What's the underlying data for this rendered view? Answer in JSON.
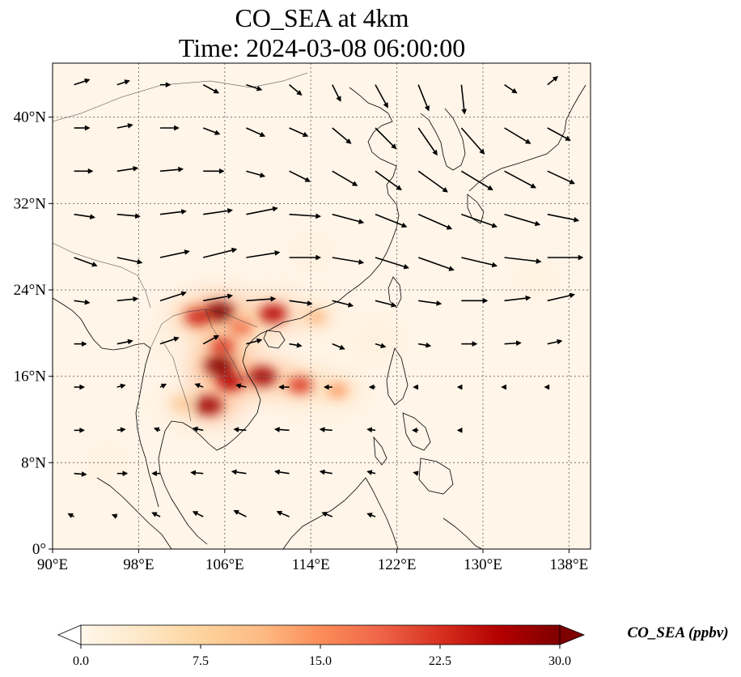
{
  "figure": {
    "title_line1": "CO_SEA at 4km",
    "title_line2": "Time: 2024-03-08 06:00:00"
  },
  "map": {
    "lon_range": [
      90,
      140
    ],
    "lat_range": [
      0,
      45
    ],
    "gridlines": true,
    "lon_ticks": [
      {
        "value": 90,
        "label": "90°E"
      },
      {
        "value": 98,
        "label": "98°E"
      },
      {
        "value": 106,
        "label": "106°E"
      },
      {
        "value": 114,
        "label": "114°E"
      },
      {
        "value": 122,
        "label": "122°E"
      },
      {
        "value": 130,
        "label": "130°E"
      },
      {
        "value": 138,
        "label": "138°E"
      }
    ],
    "lat_ticks": [
      {
        "value": 0,
        "label": "0°"
      },
      {
        "value": 8,
        "label": "8°N"
      },
      {
        "value": 16,
        "label": "16°N"
      },
      {
        "value": 24,
        "label": "24°N"
      },
      {
        "value": 32,
        "label": "32°N"
      },
      {
        "value": 40,
        "label": "40°N"
      }
    ]
  },
  "colorbar": {
    "label": "CO_SEA (ppbv)",
    "colormap": "OrRd",
    "colors": [
      "#fff7ec",
      "#fee8c8",
      "#fdd49e",
      "#fdbb84",
      "#fc8d59",
      "#ef6548",
      "#d7301f",
      "#b30000",
      "#7f0000"
    ],
    "range": [
      0,
      30
    ],
    "ticks": [
      {
        "value": 0,
        "label": "0.0"
      },
      {
        "value": 7.5,
        "label": "7.5"
      },
      {
        "value": 15,
        "label": "15.0"
      },
      {
        "value": 22.5,
        "label": "22.5"
      },
      {
        "value": 30,
        "label": "30.0"
      }
    ]
  },
  "concentration_hotspots": [
    {
      "lon": 105.5,
      "lat": 22.0,
      "value": 30
    },
    {
      "lon": 103.5,
      "lat": 21.5,
      "value": 24
    },
    {
      "lon": 110.5,
      "lat": 21.8,
      "value": 26
    },
    {
      "lon": 107.5,
      "lat": 20.5,
      "value": 18
    },
    {
      "lon": 105.8,
      "lat": 18.8,
      "value": 22
    },
    {
      "lon": 105.5,
      "lat": 17.0,
      "value": 30
    },
    {
      "lon": 106.5,
      "lat": 15.5,
      "value": 26
    },
    {
      "lon": 109.5,
      "lat": 16.0,
      "value": 28
    },
    {
      "lon": 113.0,
      "lat": 15.2,
      "value": 22
    },
    {
      "lon": 116.5,
      "lat": 14.7,
      "value": 14
    },
    {
      "lon": 104.5,
      "lat": 13.3,
      "value": 28
    },
    {
      "lon": 102.0,
      "lat": 13.5,
      "value": 10
    },
    {
      "lon": 114.5,
      "lat": 21.5,
      "value": 12
    },
    {
      "lon": 120.0,
      "lat": 19.5,
      "value": 8
    },
    {
      "lon": 114.0,
      "lat": 27.5,
      "value": 6
    },
    {
      "lon": 135.0,
      "lat": 25.0,
      "value": 5
    },
    {
      "lon": 95.0,
      "lat": 8.0,
      "value": 5
    },
    {
      "lon": 100.5,
      "lat": 19.0,
      "value": 5
    }
  ],
  "wind_vectors": [
    {
      "lon": 92,
      "lat": 43,
      "u": 1.5,
      "v": 0.5
    },
    {
      "lon": 96,
      "lat": 43,
      "u": 1.2,
      "v": 0.4
    },
    {
      "lon": 100,
      "lat": 43,
      "u": 1.0,
      "v": 0.0
    },
    {
      "lon": 104,
      "lat": 43,
      "u": 1.5,
      "v": -0.8
    },
    {
      "lon": 108,
      "lat": 43,
      "u": 1.5,
      "v": -0.5
    },
    {
      "lon": 112,
      "lat": 43,
      "u": 1.2,
      "v": -1.0
    },
    {
      "lon": 116,
      "lat": 43,
      "u": 0.8,
      "v": -1.6
    },
    {
      "lon": 120,
      "lat": 43,
      "u": 1.2,
      "v": -2.2
    },
    {
      "lon": 124,
      "lat": 43,
      "u": 1.0,
      "v": -2.5
    },
    {
      "lon": 128,
      "lat": 43,
      "u": 0.3,
      "v": -2.8
    },
    {
      "lon": 132,
      "lat": 43,
      "u": 1.2,
      "v": -0.8
    },
    {
      "lon": 136,
      "lat": 43,
      "u": 1.0,
      "v": 0.8
    },
    {
      "lon": 92,
      "lat": 39,
      "u": 1.5,
      "v": 0.0
    },
    {
      "lon": 96,
      "lat": 39,
      "u": 1.5,
      "v": 0.3
    },
    {
      "lon": 100,
      "lat": 39,
      "u": 1.8,
      "v": 0.0
    },
    {
      "lon": 104,
      "lat": 39,
      "u": 1.6,
      "v": -0.6
    },
    {
      "lon": 108,
      "lat": 39,
      "u": 1.8,
      "v": -0.8
    },
    {
      "lon": 112,
      "lat": 39,
      "u": 1.8,
      "v": -0.8
    },
    {
      "lon": 116,
      "lat": 39,
      "u": 1.8,
      "v": -1.5
    },
    {
      "lon": 120,
      "lat": 39,
      "u": 2.0,
      "v": -2.0
    },
    {
      "lon": 124,
      "lat": 39,
      "u": 1.8,
      "v": -2.6
    },
    {
      "lon": 128,
      "lat": 39,
      "u": 2.2,
      "v": -2.5
    },
    {
      "lon": 132,
      "lat": 39,
      "u": 2.5,
      "v": -1.5
    },
    {
      "lon": 136,
      "lat": 39,
      "u": 2.2,
      "v": -1.2
    },
    {
      "lon": 92,
      "lat": 35,
      "u": 1.8,
      "v": 0.0
    },
    {
      "lon": 96,
      "lat": 35,
      "u": 2.0,
      "v": 0.3
    },
    {
      "lon": 100,
      "lat": 35,
      "u": 2.2,
      "v": 0.2
    },
    {
      "lon": 104,
      "lat": 35,
      "u": 2.0,
      "v": 0.0
    },
    {
      "lon": 108,
      "lat": 35,
      "u": 1.8,
      "v": -0.5
    },
    {
      "lon": 112,
      "lat": 35,
      "u": 2.0,
      "v": -1.0
    },
    {
      "lon": 116,
      "lat": 35,
      "u": 2.4,
      "v": -1.4
    },
    {
      "lon": 120,
      "lat": 35,
      "u": 2.5,
      "v": -1.8
    },
    {
      "lon": 124,
      "lat": 35,
      "u": 2.8,
      "v": -2.0
    },
    {
      "lon": 128,
      "lat": 35,
      "u": 3.0,
      "v": -1.8
    },
    {
      "lon": 132,
      "lat": 35,
      "u": 3.0,
      "v": -1.6
    },
    {
      "lon": 136,
      "lat": 35,
      "u": 2.6,
      "v": -1.2
    },
    {
      "lon": 92,
      "lat": 31,
      "u": 2.0,
      "v": -0.3
    },
    {
      "lon": 96,
      "lat": 31,
      "u": 2.2,
      "v": -0.2
    },
    {
      "lon": 100,
      "lat": 31,
      "u": 2.5,
      "v": 0.3
    },
    {
      "lon": 104,
      "lat": 31,
      "u": 2.8,
      "v": 0.4
    },
    {
      "lon": 108,
      "lat": 31,
      "u": 3.0,
      "v": 0.6
    },
    {
      "lon": 112,
      "lat": 31,
      "u": 3.0,
      "v": -0.2
    },
    {
      "lon": 116,
      "lat": 31,
      "u": 3.0,
      "v": -0.8
    },
    {
      "lon": 120,
      "lat": 31,
      "u": 3.0,
      "v": -1.2
    },
    {
      "lon": 124,
      "lat": 31,
      "u": 3.2,
      "v": -1.4
    },
    {
      "lon": 128,
      "lat": 31,
      "u": 3.4,
      "v": -1.2
    },
    {
      "lon": 132,
      "lat": 31,
      "u": 3.4,
      "v": -1.0
    },
    {
      "lon": 136,
      "lat": 31,
      "u": 3.0,
      "v": -0.6
    },
    {
      "lon": 92,
      "lat": 27,
      "u": 2.2,
      "v": -0.8
    },
    {
      "lon": 96,
      "lat": 27,
      "u": 2.4,
      "v": -0.5
    },
    {
      "lon": 100,
      "lat": 27,
      "u": 2.8,
      "v": 0.6
    },
    {
      "lon": 104,
      "lat": 27,
      "u": 3.2,
      "v": 0.8
    },
    {
      "lon": 108,
      "lat": 27,
      "u": 3.2,
      "v": 0.5
    },
    {
      "lon": 112,
      "lat": 27,
      "u": 3.0,
      "v": 0.0
    },
    {
      "lon": 116,
      "lat": 27,
      "u": 3.0,
      "v": -0.5
    },
    {
      "lon": 120,
      "lat": 27,
      "u": 3.2,
      "v": -1.0
    },
    {
      "lon": 124,
      "lat": 27,
      "u": 3.4,
      "v": -1.2
    },
    {
      "lon": 128,
      "lat": 27,
      "u": 3.4,
      "v": -0.8
    },
    {
      "lon": 132,
      "lat": 27,
      "u": 3.5,
      "v": -0.4
    },
    {
      "lon": 136,
      "lat": 27,
      "u": 3.4,
      "v": 0.0
    },
    {
      "lon": 92,
      "lat": 23,
      "u": 1.5,
      "v": -0.2
    },
    {
      "lon": 96,
      "lat": 23,
      "u": 2.0,
      "v": 0.2
    },
    {
      "lon": 100,
      "lat": 23,
      "u": 2.5,
      "v": 0.8
    },
    {
      "lon": 104,
      "lat": 23,
      "u": 2.8,
      "v": 0.5
    },
    {
      "lon": 108,
      "lat": 23,
      "u": 2.8,
      "v": 0.2
    },
    {
      "lon": 112,
      "lat": 23,
      "u": 2.2,
      "v": -0.3
    },
    {
      "lon": 116,
      "lat": 23,
      "u": 2.0,
      "v": -0.5
    },
    {
      "lon": 120,
      "lat": 23,
      "u": 2.0,
      "v": -0.5
    },
    {
      "lon": 124,
      "lat": 23,
      "u": 2.2,
      "v": -0.3
    },
    {
      "lon": 128,
      "lat": 23,
      "u": 2.5,
      "v": 0.0
    },
    {
      "lon": 132,
      "lat": 23,
      "u": 2.5,
      "v": 0.3
    },
    {
      "lon": 136,
      "lat": 23,
      "u": 2.6,
      "v": 0.6
    },
    {
      "lon": 92,
      "lat": 19,
      "u": 1.2,
      "v": 0.0
    },
    {
      "lon": 96,
      "lat": 19,
      "u": 1.5,
      "v": 0.3
    },
    {
      "lon": 100,
      "lat": 19,
      "u": 1.8,
      "v": 0.6
    },
    {
      "lon": 104,
      "lat": 19,
      "u": 1.5,
      "v": 0.8
    },
    {
      "lon": 108,
      "lat": 19,
      "u": 1.5,
      "v": 0.4
    },
    {
      "lon": 112,
      "lat": 19,
      "u": 1.2,
      "v": -0.2
    },
    {
      "lon": 116,
      "lat": 19,
      "u": 1.2,
      "v": -0.5
    },
    {
      "lon": 120,
      "lat": 19,
      "u": 1.0,
      "v": -0.3
    },
    {
      "lon": 124,
      "lat": 19,
      "u": 1.2,
      "v": -0.2
    },
    {
      "lon": 128,
      "lat": 19,
      "u": 1.5,
      "v": 0.0
    },
    {
      "lon": 132,
      "lat": 19,
      "u": 1.6,
      "v": 0.1
    },
    {
      "lon": 136,
      "lat": 19,
      "u": 1.4,
      "v": 0.3
    },
    {
      "lon": 92,
      "lat": 15,
      "u": 1.0,
      "v": 0.0
    },
    {
      "lon": 96,
      "lat": 15,
      "u": 0.8,
      "v": 0.2
    },
    {
      "lon": 100,
      "lat": 15,
      "u": 0.6,
      "v": 0.3
    },
    {
      "lon": 104,
      "lat": 15,
      "u": -0.8,
      "v": 0.3
    },
    {
      "lon": 108,
      "lat": 15,
      "u": -1.0,
      "v": 0.2
    },
    {
      "lon": 112,
      "lat": 15,
      "u": -1.0,
      "v": 0.0
    },
    {
      "lon": 116,
      "lat": 15,
      "u": -0.8,
      "v": 0.0
    },
    {
      "lon": 120,
      "lat": 15,
      "u": -0.6,
      "v": 0.0
    },
    {
      "lon": 124,
      "lat": 15,
      "u": -0.5,
      "v": 0.0
    },
    {
      "lon": 128,
      "lat": 15,
      "u": -0.4,
      "v": 0.0
    },
    {
      "lon": 132,
      "lat": 15,
      "u": -0.3,
      "v": 0.0
    },
    {
      "lon": 136,
      "lat": 15,
      "u": -0.3,
      "v": 0.0
    },
    {
      "lon": 92,
      "lat": 11,
      "u": 1.0,
      "v": 0.0
    },
    {
      "lon": 96,
      "lat": 11,
      "u": 0.8,
      "v": 0.1
    },
    {
      "lon": 100,
      "lat": 11,
      "u": -0.6,
      "v": 0.2
    },
    {
      "lon": 104,
      "lat": 11,
      "u": -1.0,
      "v": 0.2
    },
    {
      "lon": 108,
      "lat": 11,
      "u": -1.2,
      "v": 0.1
    },
    {
      "lon": 112,
      "lat": 11,
      "u": -1.4,
      "v": 0.1
    },
    {
      "lon": 116,
      "lat": 11,
      "u": -1.2,
      "v": 0.1
    },
    {
      "lon": 120,
      "lat": 11,
      "u": -0.8,
      "v": 0.1
    },
    {
      "lon": 124,
      "lat": 11,
      "u": -0.6,
      "v": 0.0
    },
    {
      "lon": 128,
      "lat": 11,
      "u": -0.4,
      "v": 0.0
    },
    {
      "lon": 92,
      "lat": 7,
      "u": 1.2,
      "v": -0.1
    },
    {
      "lon": 96,
      "lat": 7,
      "u": 1.0,
      "v": 0.0
    },
    {
      "lon": 100,
      "lat": 7,
      "u": -0.8,
      "v": 0.0
    },
    {
      "lon": 104,
      "lat": 7,
      "u": -1.2,
      "v": 0.1
    },
    {
      "lon": 108,
      "lat": 7,
      "u": -1.4,
      "v": 0.2
    },
    {
      "lon": 112,
      "lat": 7,
      "u": -1.4,
      "v": 0.2
    },
    {
      "lon": 116,
      "lat": 7,
      "u": -1.2,
      "v": 0.2
    },
    {
      "lon": 120,
      "lat": 7,
      "u": -0.8,
      "v": 0.2
    },
    {
      "lon": 124,
      "lat": 7,
      "u": -0.5,
      "v": 0.1
    },
    {
      "lon": 92,
      "lat": 3,
      "u": -0.6,
      "v": 0.3
    },
    {
      "lon": 96,
      "lat": 3,
      "u": -0.5,
      "v": 0.2
    },
    {
      "lon": 100,
      "lat": 3,
      "u": -0.8,
      "v": 0.4
    },
    {
      "lon": 104,
      "lat": 3,
      "u": -1.0,
      "v": 0.5
    },
    {
      "lon": 108,
      "lat": 3,
      "u": -1.2,
      "v": 0.6
    },
    {
      "lon": 112,
      "lat": 3,
      "u": -1.2,
      "v": 0.5
    },
    {
      "lon": 116,
      "lat": 3,
      "u": -1.0,
      "v": 0.4
    },
    {
      "lon": 120,
      "lat": 3,
      "u": -0.8,
      "v": 0.3
    }
  ]
}
